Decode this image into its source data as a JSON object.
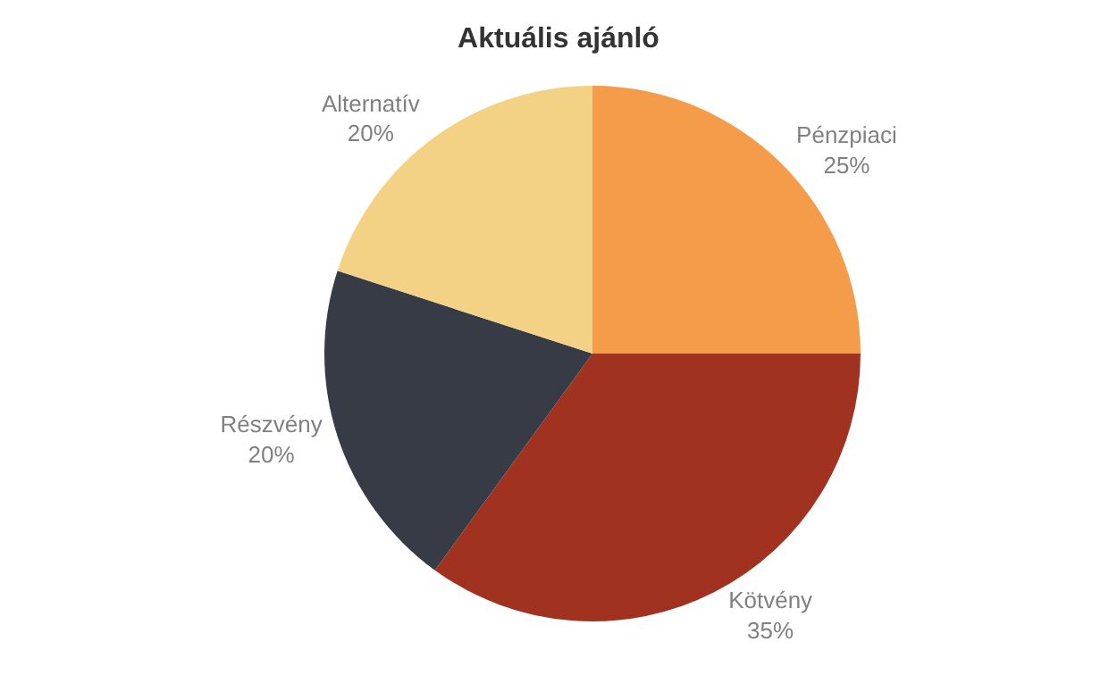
{
  "chart_data": {
    "type": "pie",
    "title": "Aktuális ajánló",
    "categories": [
      "Pénzpiaci",
      "Kötvény",
      "Részvény",
      "Alternatív"
    ],
    "values": [
      25,
      35,
      20,
      20
    ],
    "value_labels": [
      "25%",
      "35%",
      "20%",
      "20%"
    ],
    "colors": [
      "#f59c4a",
      "#a23220",
      "#373b45",
      "#f3d286"
    ],
    "legend": false
  }
}
